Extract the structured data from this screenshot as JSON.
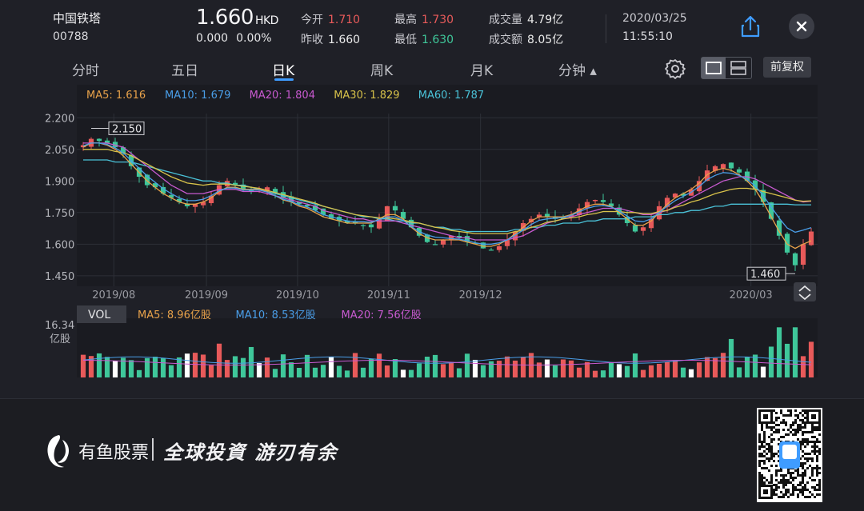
{
  "stock": {
    "name": "中国铁塔",
    "code": "00788",
    "price": "1.660",
    "currency": "HKD",
    "change": "0.000",
    "change_pct": "0.00%"
  },
  "quote": {
    "open_label": "今开",
    "open": "1.710",
    "prev_close_label": "昨收",
    "prev_close": "1.660",
    "high_label": "最高",
    "high": "1.730",
    "low_label": "最低",
    "low": "1.630",
    "volume_label": "成交量",
    "volume": "4.79亿",
    "turnover_label": "成交额",
    "turnover": "8.05亿"
  },
  "datetime": {
    "date": "2020/03/25",
    "time": "11:55:10"
  },
  "tabs": [
    {
      "label": "分时"
    },
    {
      "label": "五日"
    },
    {
      "label": "日K"
    },
    {
      "label": "周K"
    },
    {
      "label": "月K"
    },
    {
      "label": "分钟 ▴"
    }
  ],
  "active_tab": 2,
  "adjust_button": "前复权",
  "icons": {
    "share": "share-icon",
    "close": "close-icon",
    "gear": "gear-icon",
    "layout": "layout-toggle-icon",
    "expand": "expand-collapse-icon"
  },
  "colors": {
    "up": "#e85a5a",
    "down": "#3fc79a",
    "ma5": "#e8a24a",
    "ma10": "#4a9ee8",
    "ma20": "#c85ad0",
    "ma30": "#d8c24a",
    "ma60": "#4ac2d8",
    "background": "#1f2027"
  },
  "chart_data": {
    "type": "candlestick",
    "ma_legend": [
      {
        "label": "MA5: 1.616",
        "color": "#e8a24a"
      },
      {
        "label": "MA10: 1.679",
        "color": "#4a9ee8"
      },
      {
        "label": "MA20: 1.804",
        "color": "#c85ad0"
      },
      {
        "label": "MA30: 1.829",
        "color": "#d8c24a"
      },
      {
        "label": "MA60: 1.787",
        "color": "#4ac2d8"
      }
    ],
    "y_ticks": [
      "2.200",
      "2.050",
      "1.900",
      "1.750",
      "1.600",
      "1.450"
    ],
    "ylim": [
      1.4,
      2.22
    ],
    "x_ticks": [
      "2019/08",
      "2019/09",
      "2019/10",
      "2019/11",
      "2019/12",
      "2020/03"
    ],
    "high_marker": "2.150",
    "low_marker": "1.460",
    "close_path": [
      2.07,
      2.1,
      2.09,
      2.08,
      2.06,
      2.03,
      1.97,
      1.92,
      1.88,
      1.87,
      1.84,
      1.82,
      1.8,
      1.78,
      1.79,
      1.8,
      1.83,
      1.88,
      1.9,
      1.88,
      1.86,
      1.85,
      1.86,
      1.87,
      1.84,
      1.82,
      1.8,
      1.79,
      1.78,
      1.76,
      1.74,
      1.72,
      1.71,
      1.7,
      1.7,
      1.69,
      1.68,
      1.72,
      1.78,
      1.76,
      1.72,
      1.68,
      1.64,
      1.61,
      1.6,
      1.62,
      1.64,
      1.63,
      1.61,
      1.6,
      1.58,
      1.57,
      1.59,
      1.62,
      1.66,
      1.7,
      1.72,
      1.74,
      1.73,
      1.72,
      1.72,
      1.74,
      1.77,
      1.8,
      1.81,
      1.8,
      1.78,
      1.74,
      1.7,
      1.66,
      1.68,
      1.72,
      1.78,
      1.82,
      1.84,
      1.83,
      1.86,
      1.9,
      1.95,
      1.97,
      1.98,
      1.96,
      1.94,
      1.9,
      1.86,
      1.8,
      1.72,
      1.64,
      1.56,
      1.5,
      1.6,
      1.66
    ],
    "ma5_path": [
      2.06,
      2.08,
      2.08,
      2.07,
      2.05,
      2.02,
      1.98,
      1.94,
      1.9,
      1.87,
      1.84,
      1.82,
      1.8,
      1.79,
      1.79,
      1.8,
      1.82,
      1.85,
      1.87,
      1.87,
      1.86,
      1.86,
      1.86,
      1.85,
      1.83,
      1.81,
      1.8,
      1.78,
      1.77,
      1.75,
      1.73,
      1.72,
      1.71,
      1.7,
      1.7,
      1.7,
      1.7,
      1.72,
      1.74,
      1.74,
      1.72,
      1.68,
      1.65,
      1.63,
      1.62,
      1.62,
      1.62,
      1.62,
      1.61,
      1.6,
      1.59,
      1.59,
      1.6,
      1.62,
      1.65,
      1.68,
      1.71,
      1.73,
      1.73,
      1.73,
      1.73,
      1.74,
      1.76,
      1.78,
      1.79,
      1.79,
      1.78,
      1.75,
      1.72,
      1.69,
      1.69,
      1.71,
      1.75,
      1.79,
      1.82,
      1.84,
      1.86,
      1.89,
      1.93,
      1.95,
      1.96,
      1.95,
      1.93,
      1.9,
      1.86,
      1.8,
      1.73,
      1.66,
      1.6,
      1.58,
      1.6,
      1.616
    ],
    "ma20_path": [
      2.08,
      2.08,
      2.08,
      2.08,
      2.07,
      2.06,
      2.03,
      2.0,
      1.97,
      1.94,
      1.91,
      1.88,
      1.86,
      1.84,
      1.84,
      1.84,
      1.85,
      1.86,
      1.86,
      1.86,
      1.85,
      1.85,
      1.85,
      1.84,
      1.83,
      1.82,
      1.81,
      1.8,
      1.79,
      1.78,
      1.76,
      1.75,
      1.74,
      1.73,
      1.72,
      1.72,
      1.71,
      1.71,
      1.71,
      1.71,
      1.7,
      1.69,
      1.68,
      1.67,
      1.66,
      1.65,
      1.64,
      1.63,
      1.63,
      1.62,
      1.62,
      1.62,
      1.62,
      1.62,
      1.63,
      1.64,
      1.66,
      1.68,
      1.7,
      1.71,
      1.72,
      1.73,
      1.74,
      1.75,
      1.76,
      1.77,
      1.77,
      1.77,
      1.76,
      1.75,
      1.74,
      1.74,
      1.75,
      1.76,
      1.78,
      1.8,
      1.82,
      1.84,
      1.86,
      1.88,
      1.9,
      1.91,
      1.92,
      1.92,
      1.91,
      1.89,
      1.87,
      1.85,
      1.83,
      1.81,
      1.8,
      1.804
    ],
    "ma60_path": [
      2.0,
      2.0,
      2.0,
      2.0,
      1.99,
      1.99,
      1.99,
      1.98,
      1.97,
      1.96,
      1.95,
      1.94,
      1.93,
      1.92,
      1.91,
      1.9,
      1.9,
      1.89,
      1.89,
      1.88,
      1.88,
      1.87,
      1.86,
      1.85,
      1.84,
      1.83,
      1.82,
      1.81,
      1.8,
      1.79,
      1.78,
      1.77,
      1.76,
      1.75,
      1.74,
      1.73,
      1.73,
      1.72,
      1.72,
      1.71,
      1.71,
      1.7,
      1.7,
      1.69,
      1.68,
      1.68,
      1.67,
      1.67,
      1.66,
      1.66,
      1.66,
      1.66,
      1.66,
      1.66,
      1.67,
      1.67,
      1.68,
      1.68,
      1.69,
      1.69,
      1.7,
      1.7,
      1.7,
      1.71,
      1.71,
      1.72,
      1.72,
      1.72,
      1.72,
      1.73,
      1.73,
      1.73,
      1.74,
      1.74,
      1.75,
      1.75,
      1.76,
      1.76,
      1.77,
      1.78,
      1.78,
      1.79,
      1.79,
      1.79,
      1.79,
      1.79,
      1.79,
      1.79,
      1.79,
      1.787,
      1.787,
      1.787
    ],
    "volume": {
      "label": "VOL",
      "max_label": "16.34",
      "unit_label": "亿股",
      "ma_legend": [
        {
          "label": "MA5: 8.96亿股",
          "color": "#e8a24a"
        },
        {
          "label": "MA10: 8.53亿股",
          "color": "#4a9ee8"
        },
        {
          "label": "MA20: 7.56亿股",
          "color": "#c85ad0"
        }
      ],
      "ymax": 16.34
    }
  },
  "footer": {
    "brand": "有鱼股票",
    "slogan": "全球投資 游刃有余"
  }
}
